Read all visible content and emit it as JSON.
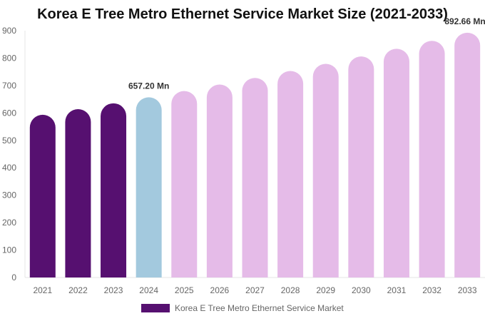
{
  "chart_data": {
    "type": "bar",
    "title": "Korea E Tree Metro Ethernet Service Market Size (2021-2033)",
    "categories": [
      "2021",
      "2022",
      "2023",
      "2024",
      "2025",
      "2026",
      "2027",
      "2028",
      "2029",
      "2030",
      "2031",
      "2032",
      "2033"
    ],
    "series": [
      {
        "name": "Korea E Tree Metro Ethernet Service Market",
        "values": [
          593.4,
          614.0,
          635.2,
          657.2,
          680.0,
          703.5,
          727.8,
          753.0,
          779.1,
          806.0,
          833.9,
          862.8,
          892.66
        ]
      }
    ],
    "data_labels": [
      {
        "category": "2024",
        "text": "657.20 Mn"
      },
      {
        "category": "2033",
        "text": "892.66 Mn"
      }
    ],
    "ylim": [
      0,
      900
    ],
    "yticks": [
      0,
      100,
      200,
      300,
      400,
      500,
      600,
      700,
      800,
      900
    ],
    "grid": false,
    "legend": "bottom",
    "colors": {
      "historical": "#561070",
      "base_year": "#a3c9de",
      "forecast": "#e5bbe8"
    }
  }
}
